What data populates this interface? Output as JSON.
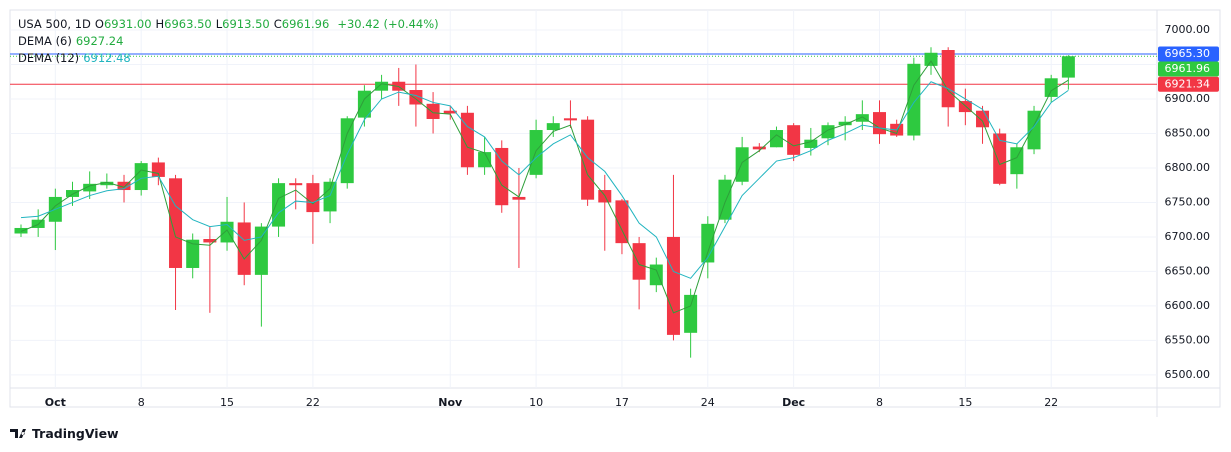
{
  "chart_data": {
    "type": "candlestick",
    "header": {
      "symbol": "USA 500, 1D",
      "ohlc": [
        {
          "key": "O",
          "text": "6931.00"
        },
        {
          "key": "H",
          "text": "6963.50"
        },
        {
          "key": "L",
          "text": "6913.50"
        },
        {
          "key": "C",
          "text": "6961.96"
        }
      ],
      "change": "+30.42 (+0.44%)"
    },
    "brand": "TradingView",
    "categories": [
      null,
      null,
      "Oct",
      null,
      null,
      null,
      null,
      "8",
      null,
      null,
      null,
      null,
      "15",
      null,
      null,
      null,
      null,
      "22",
      null,
      null,
      null,
      null,
      null,
      null,
      null,
      "Nov",
      null,
      null,
      null,
      null,
      "10",
      null,
      null,
      null,
      null,
      "17",
      null,
      null,
      null,
      null,
      "24",
      null,
      null,
      null,
      null,
      "Dec",
      null,
      null,
      null,
      null,
      "8",
      null,
      null,
      null,
      null,
      "15",
      null,
      null,
      null,
      null,
      "22",
      null
    ],
    "open": [
      6705,
      6713,
      6722,
      6758,
      6766,
      6775,
      6780,
      6768,
      6808,
      6785,
      6655,
      6697,
      6692,
      6721,
      6645,
      6715,
      6778,
      6778,
      6737,
      6778,
      6873,
      6912,
      6925,
      6913,
      6893,
      6883,
      6880,
      6801,
      6829,
      6758,
      6790,
      6855,
      6872,
      6870,
      6768,
      6753,
      6691,
      6630,
      6700,
      6561,
      6663,
      6725,
      6780,
      6831,
      6830,
      6862,
      6829,
      6843,
      6862,
      6867,
      6881,
      6864,
      6847,
      6948,
      6971,
      6897,
      6883,
      6850,
      6791,
      6827,
      6903,
      6931
    ],
    "high": [
      6718,
      6740,
      6770,
      6780,
      6795,
      6792,
      6790,
      6810,
      6815,
      6790,
      6705,
      6715,
      6758,
      6750,
      6720,
      6785,
      6785,
      6790,
      6785,
      6875,
      6920,
      6935,
      6945,
      6950,
      6910,
      6890,
      6890,
      6845,
      6840,
      6800,
      6870,
      6875,
      6898,
      6875,
      6790,
      6755,
      6700,
      6670,
      6790,
      6625,
      6730,
      6790,
      6845,
      6836,
      6860,
      6865,
      6858,
      6866,
      6875,
      6898,
      6898,
      6870,
      6960,
      6975,
      6975,
      6915,
      6890,
      6857,
      6835,
      6890,
      6935,
      6963.5
    ],
    "low": [
      6700,
      6700,
      6681,
      6745,
      6755,
      6770,
      6750,
      6760,
      6775,
      6594,
      6640,
      6590,
      6680,
      6630,
      6570,
      6700,
      6740,
      6690,
      6720,
      6770,
      6860,
      6900,
      6890,
      6860,
      6850,
      6870,
      6790,
      6790,
      6735,
      6655,
      6785,
      6845,
      6858,
      6745,
      6680,
      6675,
      6595,
      6620,
      6550,
      6525,
      6640,
      6720,
      6775,
      6823,
      6830,
      6810,
      6818,
      6833,
      6840,
      6855,
      6835,
      6845,
      6840,
      6935,
      6860,
      6862,
      6835,
      6775,
      6770,
      6820,
      6895,
      6913.5
    ],
    "close": [
      6713,
      6725,
      6758,
      6768,
      6777,
      6780,
      6768,
      6807,
      6787,
      6655,
      6696,
      6692,
      6722,
      6645,
      6715,
      6778,
      6775,
      6736,
      6780,
      6872,
      6912,
      6925,
      6912,
      6892,
      6871,
      6879,
      6801,
      6823,
      6746,
      6754,
      6855,
      6865,
      6869,
      6754,
      6750,
      6691,
      6638,
      6660,
      6558,
      6616,
      6719,
      6783,
      6830,
      6827,
      6855,
      6819,
      6841,
      6862,
      6867,
      6878,
      6849,
      6847,
      6951,
      6967,
      6888,
      6881,
      6859,
      6777,
      6830,
      6883,
      6930,
      6961.96
    ],
    "up_color": "#2ec940",
    "down_color": "#f23645",
    "series": [
      {
        "name": "DEMA (6)",
        "color": "#2e9f3a",
        "values": [
          6708,
          6718,
          6745,
          6762,
          6774,
          6779,
          6772,
          6797,
          6792,
          6700,
          6690,
          6688,
          6710,
          6668,
          6695,
          6756,
          6768,
          6748,
          6770,
          6850,
          6900,
          6922,
          6918,
          6900,
          6880,
          6878,
          6830,
          6822,
          6775,
          6758,
          6825,
          6853,
          6862,
          6790,
          6760,
          6710,
          6660,
          6652,
          6590,
          6600,
          6678,
          6750,
          6808,
          6825,
          6848,
          6832,
          6838,
          6855,
          6863,
          6874,
          6858,
          6850,
          6920,
          6955,
          6912,
          6890,
          6868,
          6805,
          6815,
          6862,
          6912,
          6927.24
        ]
      },
      {
        "name": "DEMA (12)",
        "color": "#22b5c0",
        "values": [
          6728,
          6730,
          6740,
          6750,
          6760,
          6767,
          6770,
          6785,
          6788,
          6745,
          6725,
          6715,
          6718,
          6695,
          6700,
          6735,
          6752,
          6750,
          6760,
          6820,
          6870,
          6900,
          6910,
          6905,
          6895,
          6890,
          6860,
          6845,
          6810,
          6790,
          6815,
          6835,
          6848,
          6815,
          6795,
          6760,
          6720,
          6700,
          6650,
          6640,
          6670,
          6715,
          6760,
          6785,
          6810,
          6815,
          6825,
          6840,
          6850,
          6862,
          6858,
          6855,
          6895,
          6925,
          6915,
          6900,
          6885,
          6840,
          6835,
          6860,
          6895,
          6912.48
        ]
      }
    ],
    "price_lines": [
      {
        "value": 6965.3,
        "label": "6965.30",
        "color": "#2962ff",
        "style": "solid"
      },
      {
        "value": 6961.96,
        "label": "6961.96",
        "color": "#2ec940",
        "style": "dotted"
      },
      {
        "value": 6921.34,
        "label": "6921.34",
        "color": "#f23645",
        "style": "solid"
      }
    ],
    "ylim": [
      6481,
      7029
    ],
    "yticks": [
      {
        "value": 6500,
        "label": "6500.00"
      },
      {
        "value": 6550,
        "label": "6550.00"
      },
      {
        "value": 6600,
        "label": "6600.00"
      },
      {
        "value": 6650,
        "label": "6650.00"
      },
      {
        "value": 6700,
        "label": "6700.00"
      },
      {
        "value": 6750,
        "label": "6750.00"
      },
      {
        "value": 6800,
        "label": "6800.00"
      },
      {
        "value": 6850,
        "label": "6850.00"
      },
      {
        "value": 6900,
        "label": "6900.00"
      },
      {
        "value": 6950,
        "label": "6950.00"
      },
      {
        "value": 7000,
        "label": "7000.00"
      }
    ],
    "grid": true
  }
}
